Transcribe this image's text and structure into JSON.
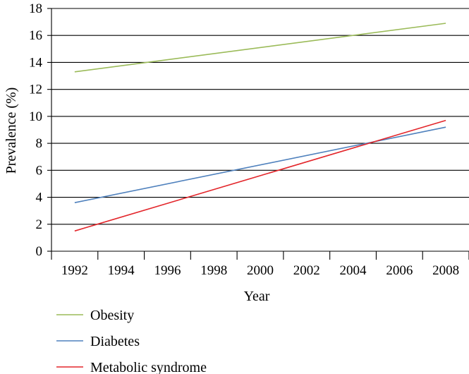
{
  "chart_data": {
    "type": "line",
    "title": "",
    "xlabel": "Year",
    "ylabel": "Prevalence (%)",
    "x_categories": [
      "1992",
      "1994",
      "1996",
      "1998",
      "2000",
      "2002",
      "2004",
      "2006",
      "2008"
    ],
    "xlim": [
      1992,
      2008
    ],
    "ylim": [
      0,
      18
    ],
    "yticks": [
      0,
      2,
      4,
      6,
      8,
      10,
      12,
      14,
      16,
      18
    ],
    "grid": "horizontal",
    "legend_position": "bottom-left",
    "series": [
      {
        "name": "Obesity",
        "color": "#9bbb59",
        "x": [
          1992,
          2008
        ],
        "values": [
          13.3,
          16.9
        ]
      },
      {
        "name": "Diabetes",
        "color": "#4f81bd",
        "x": [
          1992,
          2008
        ],
        "values": [
          3.6,
          9.2
        ]
      },
      {
        "name": "Metabolic syndrome",
        "color": "#e3262b",
        "x": [
          1992,
          2008
        ],
        "values": [
          1.5,
          9.7
        ]
      }
    ]
  }
}
